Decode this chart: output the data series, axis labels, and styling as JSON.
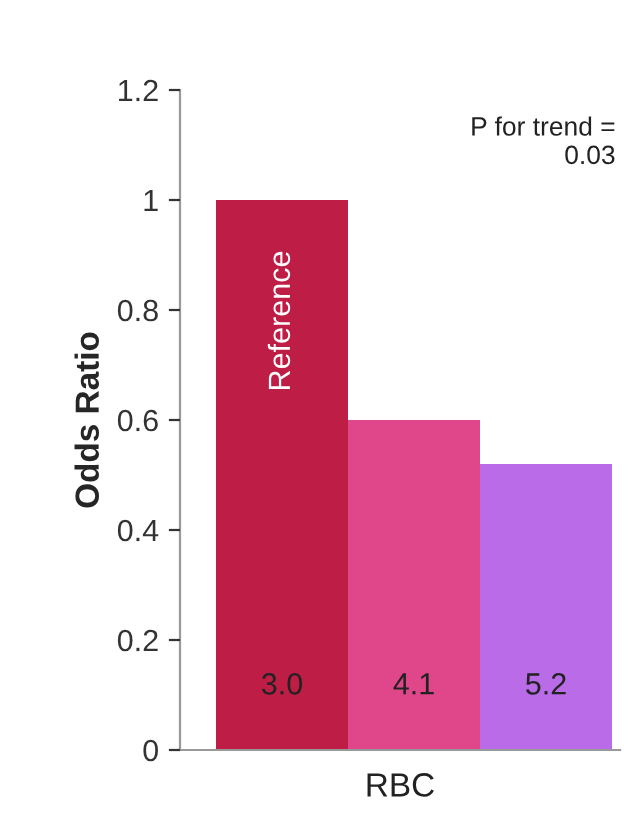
{
  "chart_data": {
    "type": "bar",
    "categories": [
      "3.0",
      "4.1",
      "5.2"
    ],
    "xlabel": "RBC",
    "ylabel": "Odds Ratio",
    "values": [
      1.0,
      0.6,
      0.52
    ],
    "colors": [
      "#be1e45",
      "#e0468a",
      "#b96be8"
    ],
    "ylim": [
      0,
      1.2
    ],
    "yticks": [
      0,
      0.2,
      0.4,
      0.6,
      0.8,
      1,
      1.2
    ],
    "annotations": [
      "P for trend =\n0.03",
      "Reference"
    ],
    "grid": false,
    "legend": false
  }
}
